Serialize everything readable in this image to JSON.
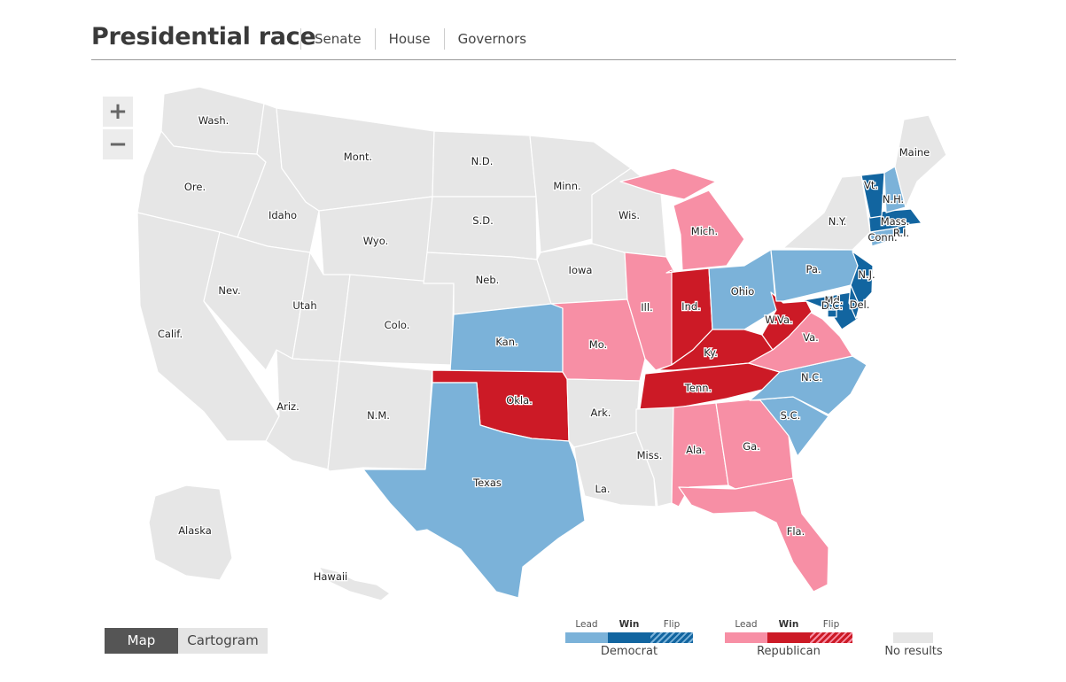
{
  "header": {
    "title": "Presidential race",
    "tabs": [
      "Senate",
      "House",
      "Governors"
    ]
  },
  "zoom": {
    "in_label": "+",
    "out_label": "−"
  },
  "colors": {
    "dem_lead": "#7bb2d9",
    "dem_win": "#1265a0",
    "rep_lead": "#f78fa5",
    "rep_win": "#cc1a26",
    "no_results": "#e6e6e6"
  },
  "states": [
    {
      "label": "Wash.",
      "status": "none"
    },
    {
      "label": "Ore.",
      "status": "none"
    },
    {
      "label": "Calif.",
      "status": "none"
    },
    {
      "label": "Idaho",
      "status": "none"
    },
    {
      "label": "Nev.",
      "status": "none"
    },
    {
      "label": "Mont.",
      "status": "none"
    },
    {
      "label": "Wyo.",
      "status": "none"
    },
    {
      "label": "Utah",
      "status": "none"
    },
    {
      "label": "Ariz.",
      "status": "none"
    },
    {
      "label": "Colo.",
      "status": "none"
    },
    {
      "label": "N.M.",
      "status": "none"
    },
    {
      "label": "N.D.",
      "status": "none"
    },
    {
      "label": "S.D.",
      "status": "none"
    },
    {
      "label": "Neb.",
      "status": "none"
    },
    {
      "label": "Kan.",
      "status": "dem_lead"
    },
    {
      "label": "Okla.",
      "status": "rep_win"
    },
    {
      "label": "Texas",
      "status": "dem_lead"
    },
    {
      "label": "Minn.",
      "status": "none"
    },
    {
      "label": "Iowa",
      "status": "none"
    },
    {
      "label": "Mo.",
      "status": "rep_lead"
    },
    {
      "label": "Ark.",
      "status": "none"
    },
    {
      "label": "La.",
      "status": "none"
    },
    {
      "label": "Wis.",
      "status": "none"
    },
    {
      "label": "Ill.",
      "status": "rep_lead"
    },
    {
      "label": "Mich.",
      "status": "rep_lead"
    },
    {
      "label": "Ind.",
      "status": "rep_win"
    },
    {
      "label": "Ohio",
      "status": "dem_lead"
    },
    {
      "label": "Ky.",
      "status": "rep_win"
    },
    {
      "label": "Tenn.",
      "status": "rep_win"
    },
    {
      "label": "Miss.",
      "status": "none"
    },
    {
      "label": "Ala.",
      "status": "rep_lead"
    },
    {
      "label": "Ga.",
      "status": "rep_lead"
    },
    {
      "label": "Fla.",
      "status": "rep_lead"
    },
    {
      "label": "S.C.",
      "status": "dem_lead"
    },
    {
      "label": "N.C.",
      "status": "dem_lead"
    },
    {
      "label": "Va.",
      "status": "rep_lead"
    },
    {
      "label": "W.Va.",
      "status": "rep_win"
    },
    {
      "label": "Pa.",
      "status": "dem_lead"
    },
    {
      "label": "N.Y.",
      "status": "none"
    },
    {
      "label": "N.J.",
      "status": "dem_win"
    },
    {
      "label": "Del.",
      "status": "dem_win"
    },
    {
      "label": "Md.",
      "status": "dem_win"
    },
    {
      "label": "D.C.",
      "status": "dem_win"
    },
    {
      "label": "Conn.",
      "status": "dem_lead"
    },
    {
      "label": "R.I.",
      "status": "dem_win"
    },
    {
      "label": "Mass.",
      "status": "dem_win"
    },
    {
      "label": "Vt.",
      "status": "dem_win"
    },
    {
      "label": "N.H.",
      "status": "dem_lead"
    },
    {
      "label": "Maine",
      "status": "none"
    },
    {
      "label": "Alaska",
      "status": "none"
    },
    {
      "label": "Hawaii",
      "status": "none"
    }
  ],
  "view_toggle": {
    "map": "Map",
    "cartogram": "Cartogram"
  },
  "legend": {
    "lead": "Lead",
    "win": "Win",
    "flip": "Flip",
    "democrat": "Democrat",
    "republican": "Republican",
    "no_results": "No results"
  }
}
